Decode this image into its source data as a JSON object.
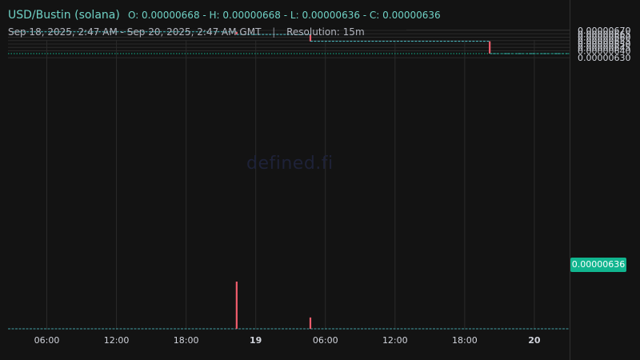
{
  "header": {
    "symbol": "USD/Bustin (solana)",
    "ohlc": "O: 0.00000668 - H: 0.00000668 - L: 0.00000636 - C: 0.00000636",
    "range": "Sep 18, 2025, 2:47 AM - Sep 20, 2025, 2:47 AM GMT",
    "separator": "|",
    "resolution": "Resolution: 15m"
  },
  "watermark": "defined.fi",
  "current_price": "0.00000636",
  "colors": {
    "background": "#131313",
    "grid": "#2a2a2a",
    "line": "#4fc3c9",
    "down": "#f05d6c",
    "current": "#11b58f"
  },
  "chart_data": {
    "type": "line",
    "title": "USD/Bustin (solana)",
    "xlabel": "",
    "ylabel": "",
    "x_ticks": [
      "06:00",
      "12:00",
      "18:00",
      "19",
      "06:00",
      "12:00",
      "18:00",
      "20"
    ],
    "y_ticks": [
      "0.00000630",
      "0.00000640",
      "0.00000645",
      "0.00000650",
      "0.00000655",
      "0.00000660",
      "0.00000665",
      "0.00000670"
    ],
    "ylim": [
      6.25e-06,
      6.72e-06
    ],
    "x_hours": [
      3,
      51
    ],
    "series": [
      {
        "name": "",
        "steps": [
          {
            "hour": 3.0,
            "value": 6.68e-06
          },
          {
            "hour": 22.35,
            "value": 6.64e-06
          },
          {
            "hour": 28.7,
            "value": 6.54e-06
          },
          {
            "hour": 44.15,
            "value": 6.36e-06
          },
          {
            "hour": 51.0,
            "value": 6.36e-06
          }
        ]
      }
    ],
    "drops": [
      {
        "hour": 22.35,
        "open": 6.68e-06,
        "close": 6.64e-06
      },
      {
        "hour": 28.7,
        "open": 6.64e-06,
        "close": 6.54e-06
      },
      {
        "hour": 44.15,
        "open": 6.54e-06,
        "close": 6.36e-06
      }
    ],
    "volume": [
      {
        "hour": 22.35,
        "relative": 1.0
      },
      {
        "hour": 28.7,
        "relative": 0.24
      }
    ],
    "grid": true,
    "legend": "none"
  }
}
